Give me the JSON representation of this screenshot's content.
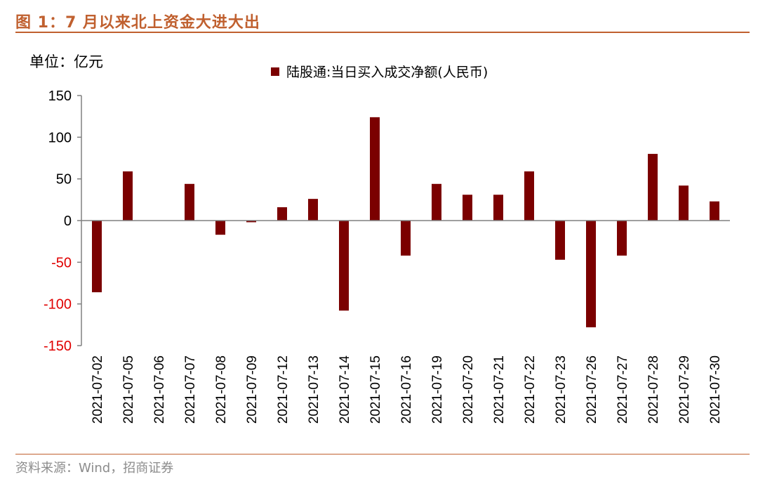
{
  "figure": {
    "title": "图 1：7 月以来北上资金大进大出",
    "unit": "单位：亿元",
    "source": "资料来源：Wind，招商证券"
  },
  "colors": {
    "accent": "#c0602f",
    "bar": "#7b0000",
    "negative_tick": "#e00000",
    "source_text": "#8c8c8c"
  },
  "chart_data": {
    "type": "bar",
    "categories": [
      "2021-07-02",
      "2021-07-05",
      "2021-07-06",
      "2021-07-07",
      "2021-07-08",
      "2021-07-09",
      "2021-07-12",
      "2021-07-13",
      "2021-07-14",
      "2021-07-15",
      "2021-07-16",
      "2021-07-19",
      "2021-07-20",
      "2021-07-21",
      "2021-07-22",
      "2021-07-23",
      "2021-07-26",
      "2021-07-27",
      "2021-07-28",
      "2021-07-29",
      "2021-07-30"
    ],
    "series": [
      {
        "name": "陆股通:当日买入成交净额(人民币)",
        "values": [
          -86,
          59,
          0,
          44,
          -17,
          -2,
          16,
          26,
          -108,
          124,
          -42,
          44,
          31,
          31,
          59,
          -47,
          -128,
          -42,
          80,
          42,
          23
        ]
      }
    ],
    "ylim": [
      -150,
      150
    ],
    "yticks": [
      150,
      100,
      50,
      0,
      -50,
      -100,
      -150
    ],
    "legend_position": "top-center",
    "grid": false
  }
}
